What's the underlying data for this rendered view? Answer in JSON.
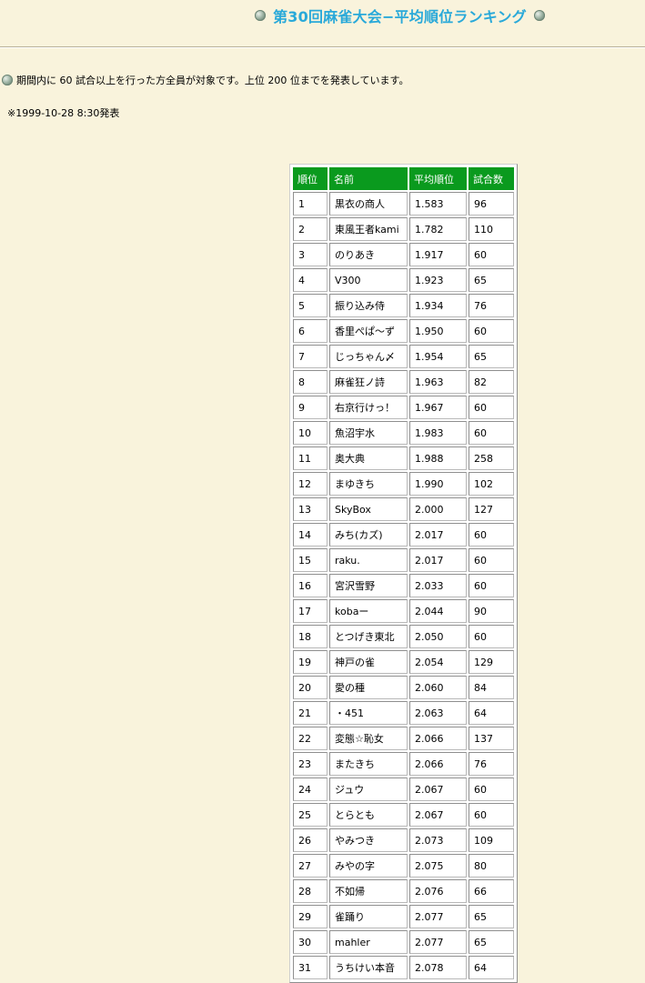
{
  "header": {
    "title": "第30回麻雀大会−平均順位ランキング",
    "icon": "green-ball-icon"
  },
  "description": "期間内に 60 試合以上を行った方全員が対象です。上位 200 位までを発表しています。",
  "timestamp": "※1999-10-28 8:30発表",
  "table": {
    "headers": [
      "順位",
      "名前",
      "平均順位",
      "試合数"
    ],
    "rows": [
      [
        "1",
        "黒衣の商人",
        "1.583",
        "96"
      ],
      [
        "2",
        "東風王者kami",
        "1.782",
        "110"
      ],
      [
        "3",
        "のりあき",
        "1.917",
        "60"
      ],
      [
        "4",
        "V300",
        "1.923",
        "65"
      ],
      [
        "5",
        "振り込み侍",
        "1.934",
        "76"
      ],
      [
        "6",
        "香里ぺぱ〜ず",
        "1.950",
        "60"
      ],
      [
        "7",
        "じっちゃん〆",
        "1.954",
        "65"
      ],
      [
        "8",
        "麻雀狂ノ詩",
        "1.963",
        "82"
      ],
      [
        "9",
        "右京行けっ！",
        "1.967",
        "60"
      ],
      [
        "10",
        "魚沼宇水",
        "1.983",
        "60"
      ],
      [
        "11",
        "奥大典",
        "1.988",
        "258"
      ],
      [
        "12",
        "まゆきち",
        "1.990",
        "102"
      ],
      [
        "13",
        "SkyBox",
        "2.000",
        "127"
      ],
      [
        "14",
        "みち(カズ)",
        "2.017",
        "60"
      ],
      [
        "15",
        "raku.",
        "2.017",
        "60"
      ],
      [
        "16",
        "宮沢雪野",
        "2.033",
        "60"
      ],
      [
        "17",
        "kobaー",
        "2.044",
        "90"
      ],
      [
        "18",
        "とつげき東北",
        "2.050",
        "60"
      ],
      [
        "19",
        "神戸の雀",
        "2.054",
        "129"
      ],
      [
        "20",
        "愛の種",
        "2.060",
        "84"
      ],
      [
        "21",
        "・451",
        "2.063",
        "64"
      ],
      [
        "22",
        "変態☆恥女",
        "2.066",
        "137"
      ],
      [
        "23",
        "またきち",
        "2.066",
        "76"
      ],
      [
        "24",
        "ジュウ",
        "2.067",
        "60"
      ],
      [
        "25",
        "とらとも",
        "2.067",
        "60"
      ],
      [
        "26",
        "やみつき",
        "2.073",
        "109"
      ],
      [
        "27",
        "みやの字",
        "2.075",
        "80"
      ],
      [
        "28",
        "不如帰",
        "2.076",
        "66"
      ],
      [
        "29",
        "雀踊り",
        "2.077",
        "65"
      ],
      [
        "30",
        "mahler",
        "2.077",
        "65"
      ],
      [
        "31",
        "うちけい本音",
        "2.078",
        "64"
      ]
    ]
  }
}
